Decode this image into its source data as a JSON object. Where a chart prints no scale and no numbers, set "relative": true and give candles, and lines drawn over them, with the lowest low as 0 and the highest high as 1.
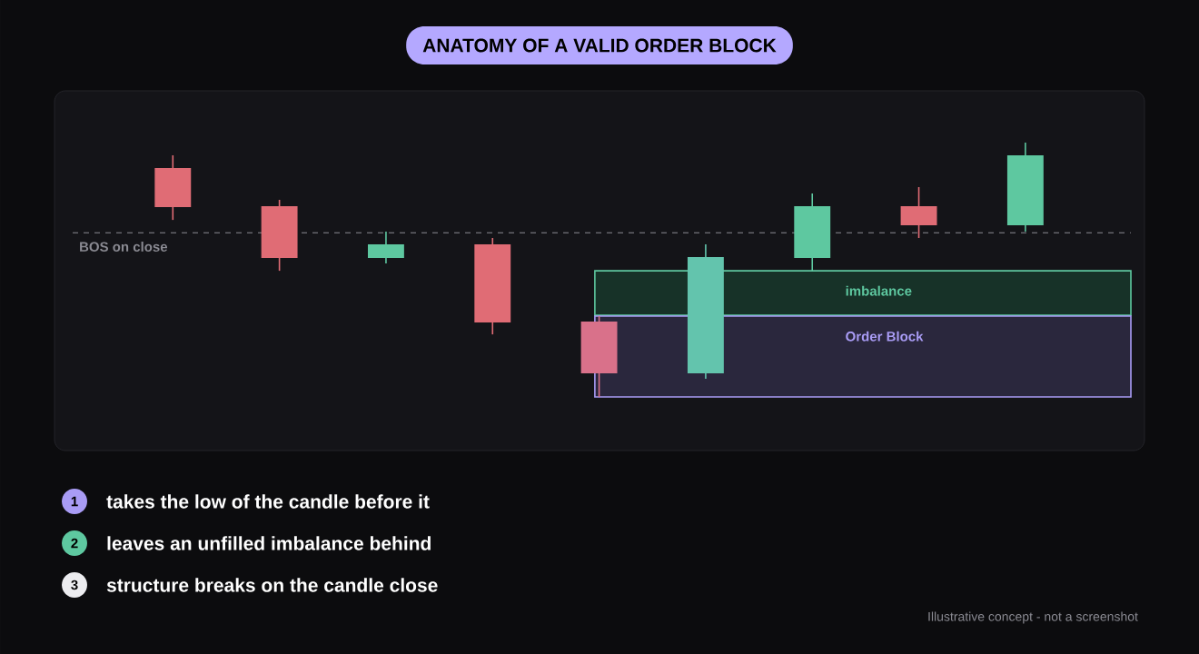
{
  "chart_data": {
    "type": "candlestick",
    "title": "ANATOMY OF A VALID ORDER BLOCK",
    "relative": true,
    "categories": [
      null,
      null,
      null,
      null,
      null,
      null,
      null,
      null,
      null
    ],
    "ohlc": [
      [
        0.9,
        0.95,
        0.696,
        0.746
      ],
      [
        0.75,
        0.775,
        0.496,
        0.546
      ],
      [
        0.546,
        0.65,
        0.525,
        0.6
      ],
      [
        0.6,
        0.625,
        0.246,
        0.293
      ],
      [
        0.296,
        0.318,
        0,
        0.093
      ],
      [
        0.093,
        0.6,
        0.071,
        0.55
      ],
      [
        0.546,
        0.8,
        0.496,
        0.75
      ],
      [
        0.75,
        0.825,
        0.625,
        0.675
      ],
      [
        0.675,
        1,
        0.65,
        0.95
      ]
    ],
    "colors": [
      "#e06c75",
      "#e06c75",
      "#5ec8a0",
      "#e06c75",
      "#d9718a",
      "#63c4ad",
      "#5ec8a0",
      "#e06c75",
      "#5ec8a0"
    ],
    "ref_lines": [
      {
        "axis": "y",
        "value": 0.646,
        "label": "BOS on close",
        "color": "#8a8a92",
        "line_style": "dashed"
      }
    ],
    "bands": [
      {
        "axis": "y",
        "from": 0.321,
        "to": 0.496,
        "label": "imbalance",
        "color": "#5ec8a0"
      },
      {
        "axis": "y",
        "from": 0,
        "to": 0.318,
        "label": "Order Block",
        "color": "#a99cf5"
      }
    ],
    "annotations": [
      "1",
      "takes the low of the candle before it",
      "2",
      "leaves an unfilled imbalance behind",
      "3",
      "structure breaks on the candle close",
      "Illustrative concept - not a screenshot"
    ]
  }
}
